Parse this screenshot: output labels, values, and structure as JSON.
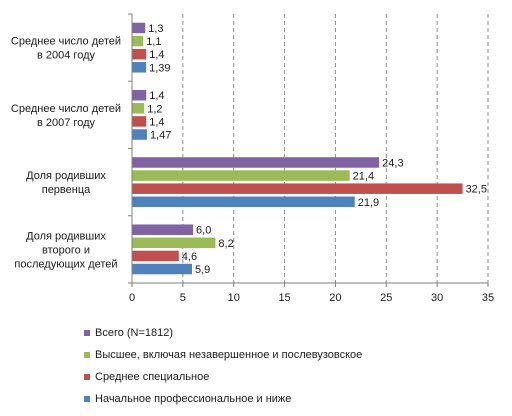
{
  "chart_data": {
    "type": "bar",
    "orientation": "horizontal",
    "categories": [
      [
        "Среднее число детей",
        "в 2004 году"
      ],
      [
        "Среднее число детей",
        "в 2007 году"
      ],
      [
        "Доля родивших",
        "первенца"
      ],
      [
        "Доля родивших",
        "второго и",
        "последующих детей"
      ]
    ],
    "series": [
      {
        "name": "Всего (N=1812)",
        "color": "#8064a2",
        "values": [
          1.3,
          1.4,
          24.3,
          6.0
        ],
        "labels": [
          "1,3",
          "1,4",
          "24,3",
          "6,0"
        ]
      },
      {
        "name": "Высшее, включая незавершенное и послевузовское",
        "color": "#9bbb59",
        "values": [
          1.1,
          1.2,
          21.4,
          8.2
        ],
        "labels": [
          "1,1",
          "1,2",
          "21,4",
          "8,2"
        ]
      },
      {
        "name": "Среднее специальное",
        "color": "#c0504d",
        "values": [
          1.4,
          1.4,
          32.5,
          4.6
        ],
        "labels": [
          "1,4",
          "1,4",
          "32,5",
          "4,6"
        ]
      },
      {
        "name": "Начальное профессиональное и ниже",
        "color": "#4f81bd",
        "values": [
          1.39,
          1.47,
          21.9,
          5.9
        ],
        "labels": [
          "1,39",
          "1,47",
          "21,9",
          "5,9"
        ]
      }
    ],
    "xlim": [
      0,
      35
    ],
    "xticks": [
      0,
      5,
      10,
      15,
      20,
      25,
      30,
      35
    ],
    "grid": "vertical-dashed",
    "legend_position": "bottom"
  }
}
